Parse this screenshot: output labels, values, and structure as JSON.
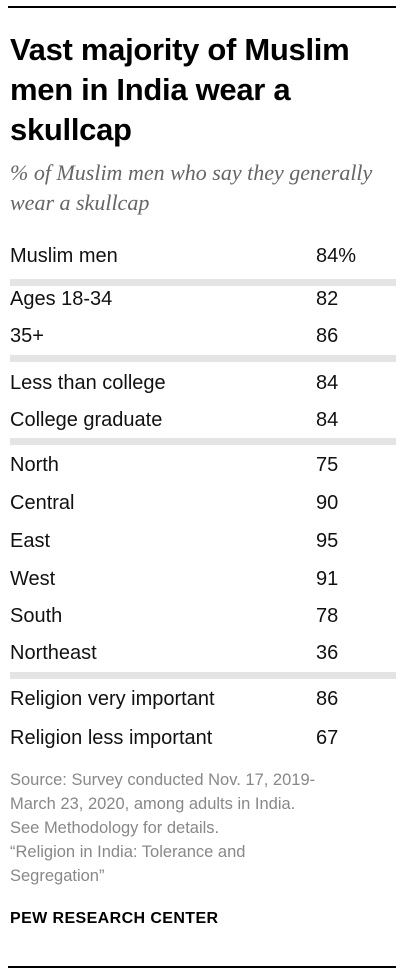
{
  "header": {
    "title": "Vast majority of Muslim men in India wear a skullcap",
    "subtitle": "% of Muslim men who say they generally wear a skullcap"
  },
  "chart_data": {
    "type": "table",
    "rows": [
      {
        "label": "Muslim men",
        "value": "84%"
      },
      {
        "label": "Ages 18-34",
        "value": "82"
      },
      {
        "label": "35+",
        "value": "86"
      },
      {
        "label": "Less than college",
        "value": "84"
      },
      {
        "label": "College graduate",
        "value": "84"
      },
      {
        "label": "North",
        "value": "75"
      },
      {
        "label": "Central",
        "value": "90"
      },
      {
        "label": "East",
        "value": "95"
      },
      {
        "label": "West",
        "value": "91"
      },
      {
        "label": "South",
        "value": "78"
      },
      {
        "label": "Northeast",
        "value": "36"
      },
      {
        "label": "Religion very important",
        "value": "86"
      },
      {
        "label": "Religion less important",
        "value": "67"
      }
    ]
  },
  "source": {
    "lines": [
      "Source: Survey conducted Nov. 17, 2019-",
      "March 23, 2020, among adults in India.",
      "See Methodology for details.",
      "“Religion in India: Tolerance and",
      "Segregation”"
    ]
  },
  "brand": "PEW RESEARCH CENTER"
}
